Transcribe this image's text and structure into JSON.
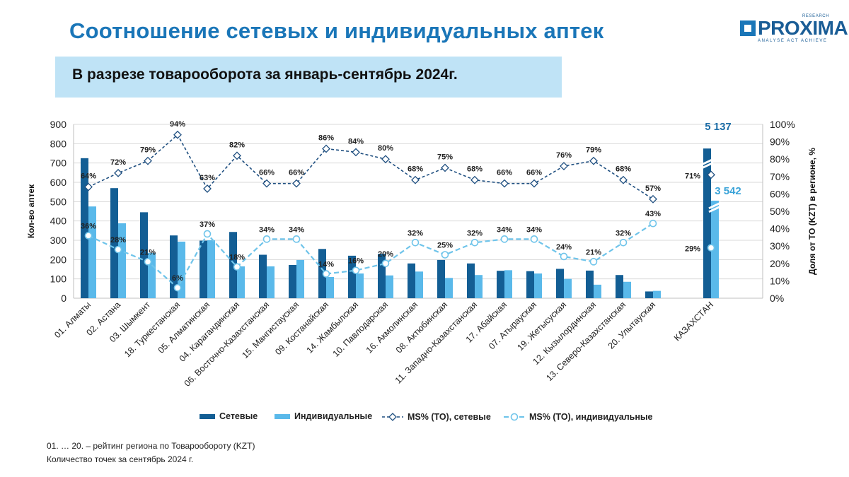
{
  "page": {
    "title": "Соотношение сетевых и индивидуальных аптек",
    "subtitle": "В разрезе товарооборота за январь-сентябрь 2024г.",
    "logo": {
      "name": "PROXIMA",
      "research": "RESEARCH",
      "tagline": "ANALYSE ACT ACHIEVE"
    },
    "notes": [
      "01. … 20. – рейтинг региона по Товарообороту (KZT)",
      "Количество точек за сентябрь 2024 г."
    ],
    "colors": {
      "title": "#1a76b8",
      "subtitle_bg": "#bfe3f6",
      "bar_network": "#135e94",
      "bar_individual": "#5ab9ea",
      "line_network": "#1f4f80",
      "line_individual": "#6fc4ea"
    }
  },
  "chart_data": {
    "type": "bar",
    "categories": [
      "01. Алматы",
      "02. Астана",
      "03. Шымкент",
      "18. Туркестанская",
      "05. Алматинская",
      "04. Карагандинская",
      "06. Восточно-Казахстанская",
      "15. Мангистауская",
      "09. Костанайская",
      "14. Жамбылская",
      "10. Павлодарская",
      "16. Акмолинская",
      "08. Актюбинская",
      "11. Западно-Казахстанская",
      "17. Абайская",
      "07. Атырауская",
      "19. Жетысуская",
      "12. Кызылординская",
      "13. Северо-Казахстанская",
      "20. Улытауская",
      "КАЗАХСТАН"
    ],
    "series": [
      {
        "name": "Сетевые",
        "kind": "bar",
        "axis": "left",
        "values": [
          725,
          570,
          445,
          325,
          298,
          343,
          225,
          172,
          255,
          220,
          230,
          180,
          198,
          180,
          142,
          140,
          152,
          143,
          120,
          35,
          5137
        ],
        "value_labels": [
          "",
          "",
          "",
          "",
          "",
          "",
          "",
          "",
          "",
          "",
          "",
          "",
          "",
          "",
          "",
          "",
          "",
          "",
          "",
          "",
          "5 137"
        ]
      },
      {
        "name": "Индивидуальные",
        "kind": "bar",
        "axis": "left",
        "values": [
          475,
          388,
          235,
          293,
          300,
          165,
          165,
          198,
          110,
          128,
          118,
          138,
          105,
          120,
          145,
          128,
          100,
          70,
          85,
          38,
          3542
        ],
        "value_labels": [
          "",
          "",
          "",
          "",
          "",
          "",
          "",
          "",
          "",
          "",
          "",
          "",
          "",
          "",
          "",
          "",
          "",
          "",
          "",
          "",
          "3 542"
        ]
      },
      {
        "name": "MS% (ТО), сетевые",
        "kind": "line",
        "axis": "right",
        "values": [
          64,
          72,
          79,
          94,
          63,
          82,
          66,
          66,
          86,
          84,
          80,
          68,
          75,
          68,
          66,
          66,
          76,
          79,
          68,
          57,
          71
        ],
        "value_labels": [
          "64%",
          "72%",
          "79%",
          "94%",
          "63%",
          "82%",
          "66%",
          "66%",
          "86%",
          "84%",
          "80%",
          "68%",
          "75%",
          "68%",
          "66%",
          "66%",
          "76%",
          "79%",
          "68%",
          "57%",
          "71%"
        ]
      },
      {
        "name": "MS% (ТО), индивидуальные",
        "kind": "line",
        "axis": "right",
        "values": [
          36,
          28,
          21,
          6,
          37,
          18,
          34,
          34,
          14,
          16,
          20,
          32,
          25,
          32,
          34,
          34,
          24,
          21,
          32,
          43,
          29
        ],
        "value_labels": [
          "36%",
          "28%",
          "21%",
          "6%",
          "37%",
          "18%",
          "34%",
          "34%",
          "14%",
          "16%",
          "20%",
          "32%",
          "25%",
          "32%",
          "34%",
          "34%",
          "24%",
          "21%",
          "32%",
          "43%",
          "29%"
        ]
      }
    ],
    "ylabel": "Кол-во аптек",
    "y2label": "Доля от ТО (KZT) в регионе, %",
    "ylim": [
      0,
      900
    ],
    "y2lim": [
      0,
      100
    ],
    "yticks": [
      "0",
      "100",
      "200",
      "300",
      "400",
      "500",
      "600",
      "700",
      "800",
      "900"
    ],
    "y2ticks": [
      "0%",
      "10%",
      "20%",
      "30%",
      "40%",
      "50%",
      "60%",
      "70%",
      "80%",
      "90%",
      "100%"
    ],
    "axis_break": "КАЗАХСТАН bars exceed axis and are shown broken",
    "grid": true,
    "legend_position": "bottom",
    "legend": [
      "Сетевые",
      "Индивидуальные",
      "MS% (ТО), сетевые",
      "MS% (ТО), индивидуальные"
    ]
  }
}
